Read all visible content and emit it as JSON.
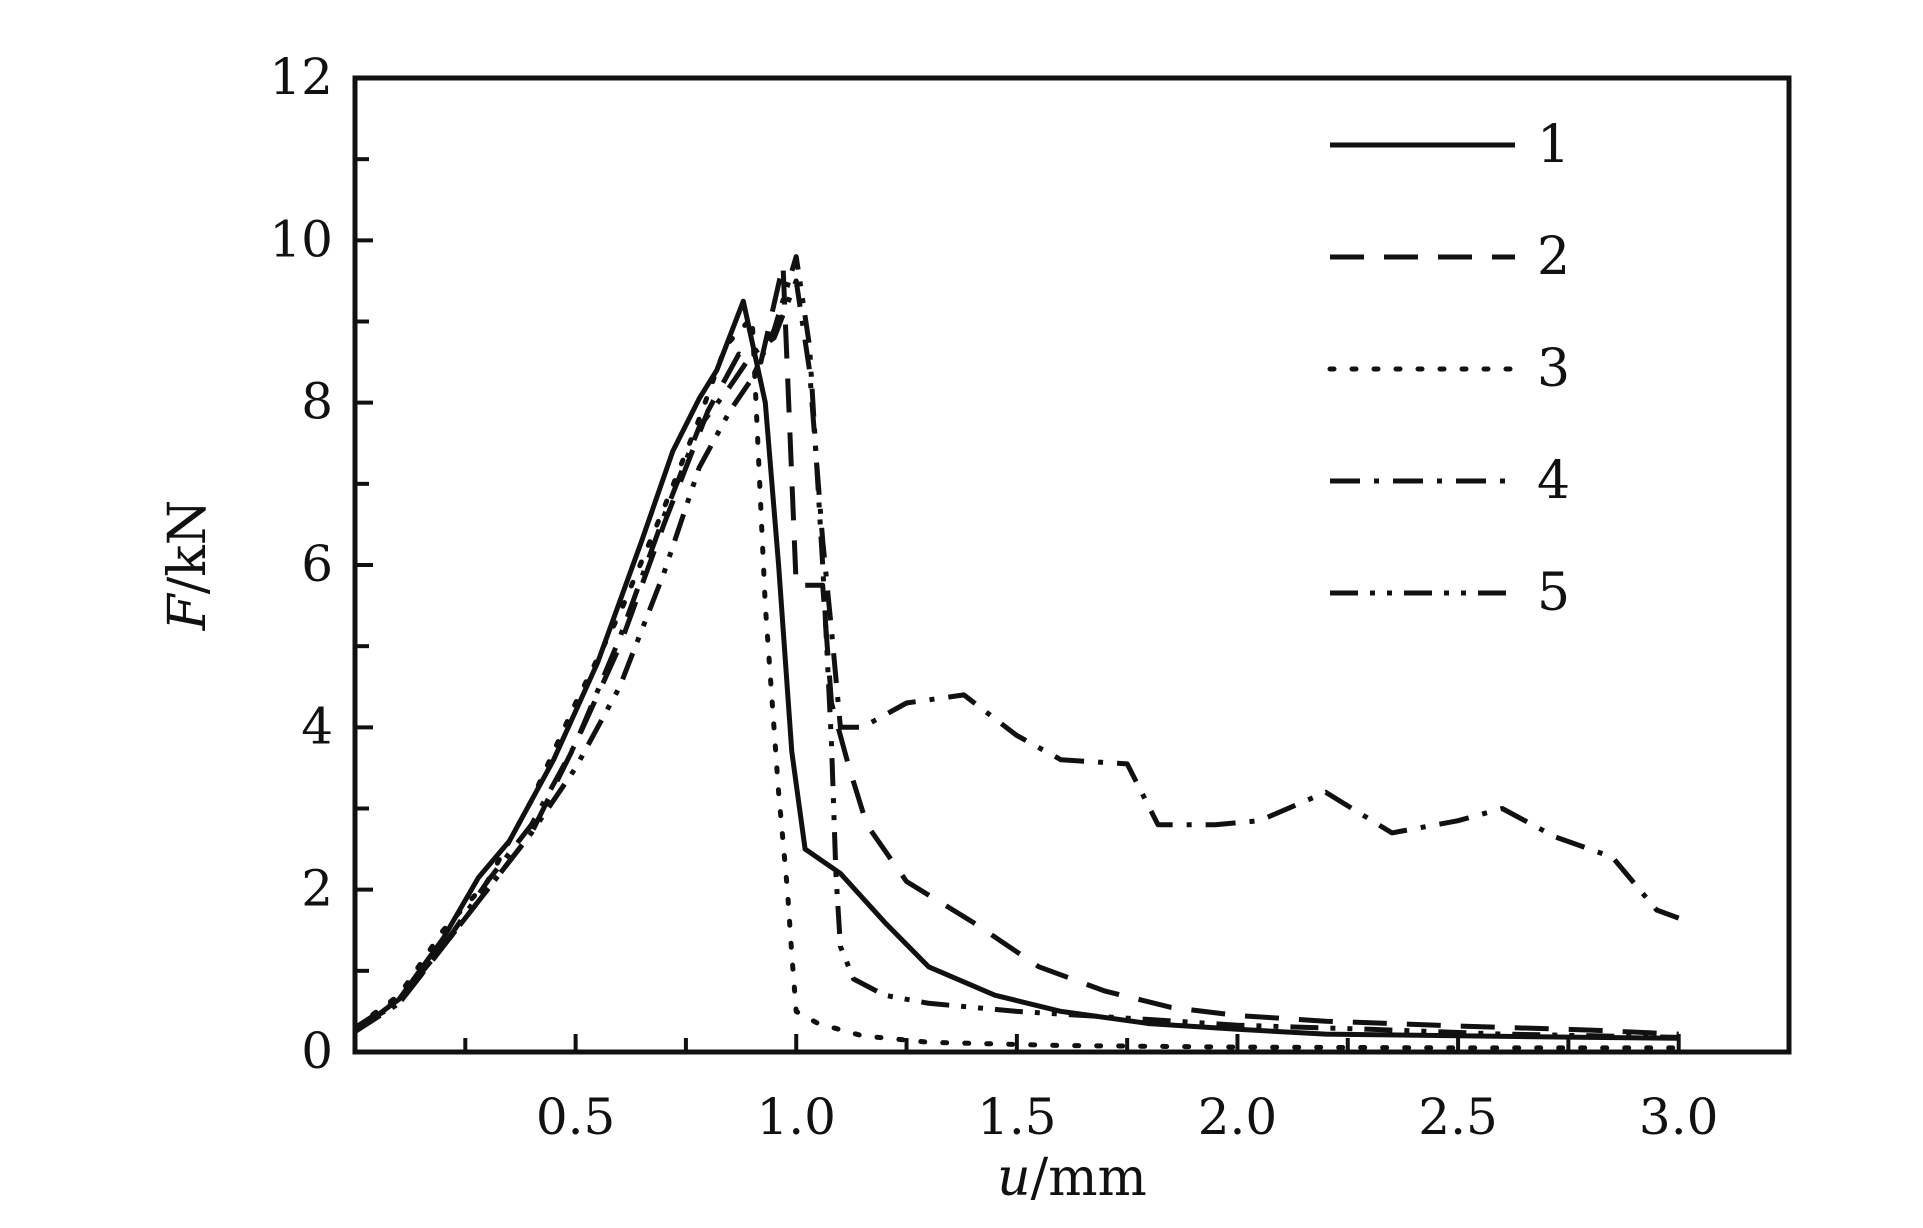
{
  "chart_data": {
    "type": "line",
    "xlabel_var": "u",
    "xlabel_unit": "/mm",
    "ylabel_var": "F",
    "ylabel_unit": "/kN",
    "xlim": [
      0,
      3.25
    ],
    "ylim": [
      0,
      12
    ],
    "x_ticks": [
      0.5,
      1.0,
      1.5,
      2.0,
      2.5,
      3.0
    ],
    "x_tick_labels": [
      "0.5",
      "1.0",
      "1.5",
      "2.0",
      "2.5",
      "3.0"
    ],
    "y_ticks": [
      0,
      2,
      4,
      6,
      8,
      10,
      12
    ],
    "y_tick_labels": [
      "0",
      "2",
      "4",
      "6",
      "8",
      "10",
      "12"
    ],
    "grid": false,
    "legend_position": "top-right",
    "series": [
      {
        "name": "1",
        "dash": "solid",
        "points": [
          [
            0,
            0.25
          ],
          [
            0.1,
            0.65
          ],
          [
            0.2,
            1.4
          ],
          [
            0.28,
            2.15
          ],
          [
            0.35,
            2.6
          ],
          [
            0.45,
            3.6
          ],
          [
            0.55,
            4.8
          ],
          [
            0.65,
            6.3
          ],
          [
            0.72,
            7.4
          ],
          [
            0.78,
            8.05
          ],
          [
            0.82,
            8.4
          ],
          [
            0.88,
            9.25
          ],
          [
            0.93,
            8.0
          ],
          [
            0.96,
            6.0
          ],
          [
            0.99,
            3.7
          ],
          [
            1.02,
            2.5
          ],
          [
            1.1,
            2.2
          ],
          [
            1.2,
            1.6
          ],
          [
            1.3,
            1.05
          ],
          [
            1.45,
            0.7
          ],
          [
            1.6,
            0.5
          ],
          [
            1.8,
            0.35
          ],
          [
            2.0,
            0.28
          ],
          [
            2.2,
            0.22
          ],
          [
            2.5,
            0.2
          ],
          [
            2.8,
            0.18
          ],
          [
            3.0,
            0.17
          ]
        ]
      },
      {
        "name": "2",
        "dash": "long-dash",
        "points": [
          [
            0,
            0.3
          ],
          [
            0.1,
            0.6
          ],
          [
            0.2,
            1.3
          ],
          [
            0.3,
            2.0
          ],
          [
            0.4,
            2.7
          ],
          [
            0.5,
            3.8
          ],
          [
            0.6,
            5.0
          ],
          [
            0.7,
            6.5
          ],
          [
            0.8,
            7.9
          ],
          [
            0.87,
            8.6
          ],
          [
            0.92,
            8.5
          ],
          [
            0.97,
            9.7
          ],
          [
            1.0,
            5.75
          ],
          [
            1.06,
            5.75
          ],
          [
            1.08,
            4.3
          ],
          [
            1.12,
            3.5
          ],
          [
            1.16,
            2.8
          ],
          [
            1.25,
            2.1
          ],
          [
            1.4,
            1.6
          ],
          [
            1.55,
            1.05
          ],
          [
            1.7,
            0.75
          ],
          [
            1.85,
            0.55
          ],
          [
            2.0,
            0.45
          ],
          [
            2.2,
            0.38
          ],
          [
            2.5,
            0.32
          ],
          [
            2.8,
            0.27
          ],
          [
            3.0,
            0.22
          ]
        ]
      },
      {
        "name": "3",
        "dash": "dotted",
        "points": [
          [
            0,
            0.3
          ],
          [
            0.1,
            0.7
          ],
          [
            0.2,
            1.5
          ],
          [
            0.3,
            2.1
          ],
          [
            0.4,
            3.1
          ],
          [
            0.5,
            4.3
          ],
          [
            0.6,
            5.4
          ],
          [
            0.7,
            6.7
          ],
          [
            0.78,
            7.8
          ],
          [
            0.84,
            8.7
          ],
          [
            0.9,
            9.05
          ],
          [
            0.93,
            5.5
          ],
          [
            0.96,
            3.2
          ],
          [
            0.98,
            2.0
          ],
          [
            0.99,
            1.2
          ],
          [
            1.0,
            0.5
          ],
          [
            1.05,
            0.35
          ],
          [
            1.15,
            0.2
          ],
          [
            1.3,
            0.12
          ],
          [
            1.6,
            0.08
          ],
          [
            2.0,
            0.06
          ],
          [
            2.5,
            0.05
          ],
          [
            3.0,
            0.05
          ]
        ]
      },
      {
        "name": "4",
        "dash": "dash-dot",
        "points": [
          [
            0,
            0.25
          ],
          [
            0.1,
            0.6
          ],
          [
            0.2,
            1.3
          ],
          [
            0.3,
            2.1
          ],
          [
            0.4,
            2.8
          ],
          [
            0.5,
            3.8
          ],
          [
            0.6,
            5.1
          ],
          [
            0.7,
            6.6
          ],
          [
            0.78,
            7.7
          ],
          [
            0.85,
            8.2
          ],
          [
            0.9,
            8.6
          ],
          [
            0.95,
            8.8
          ],
          [
            1.0,
            9.5
          ],
          [
            1.03,
            8.4
          ],
          [
            1.06,
            6.3
          ],
          [
            1.08,
            5.2
          ],
          [
            1.1,
            4.0
          ],
          [
            1.15,
            4.0
          ],
          [
            1.25,
            4.3
          ],
          [
            1.38,
            4.4
          ],
          [
            1.5,
            3.9
          ],
          [
            1.6,
            3.6
          ],
          [
            1.75,
            3.55
          ],
          [
            1.82,
            2.8
          ],
          [
            1.95,
            2.8
          ],
          [
            2.05,
            2.85
          ],
          [
            2.2,
            3.2
          ],
          [
            2.35,
            2.7
          ],
          [
            2.5,
            2.85
          ],
          [
            2.6,
            3.0
          ],
          [
            2.72,
            2.65
          ],
          [
            2.85,
            2.4
          ],
          [
            2.95,
            1.75
          ],
          [
            3.0,
            1.65
          ]
        ]
      },
      {
        "name": "5",
        "dash": "dash-dot-dot",
        "points": [
          [
            0,
            0.3
          ],
          [
            0.1,
            0.65
          ],
          [
            0.2,
            1.3
          ],
          [
            0.3,
            2.0
          ],
          [
            0.4,
            2.7
          ],
          [
            0.5,
            3.5
          ],
          [
            0.6,
            4.5
          ],
          [
            0.7,
            5.9
          ],
          [
            0.78,
            7.2
          ],
          [
            0.85,
            7.9
          ],
          [
            0.9,
            8.3
          ],
          [
            0.95,
            8.9
          ],
          [
            1.0,
            9.8
          ],
          [
            1.03,
            8.7
          ],
          [
            1.06,
            6.0
          ],
          [
            1.08,
            3.8
          ],
          [
            1.09,
            2.2
          ],
          [
            1.1,
            1.3
          ],
          [
            1.13,
            0.9
          ],
          [
            1.2,
            0.7
          ],
          [
            1.3,
            0.6
          ],
          [
            1.5,
            0.5
          ],
          [
            1.8,
            0.4
          ],
          [
            2.0,
            0.33
          ],
          [
            2.3,
            0.28
          ],
          [
            2.6,
            0.22
          ],
          [
            3.0,
            0.18
          ]
        ]
      }
    ]
  }
}
